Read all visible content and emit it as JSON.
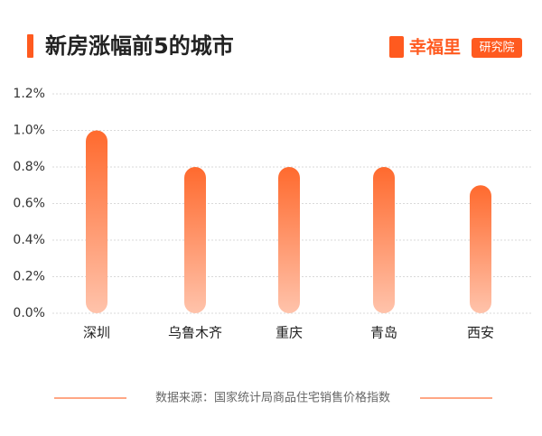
{
  "chart_data": {
    "type": "bar",
    "title": "新房涨幅前5的城市",
    "categories": [
      "深圳",
      "乌鲁木齐",
      "重庆",
      "青岛",
      "西安"
    ],
    "values": [
      1.0,
      0.8,
      0.8,
      0.8,
      0.7
    ],
    "color": "#ff6a2e",
    "ylim": [
      0,
      1.2
    ],
    "yticks": [
      {
        "value": 0,
        "label": "0.0%"
      },
      {
        "value": 0.2,
        "label": "0.2%"
      },
      {
        "value": 0.4,
        "label": "0.4%"
      },
      {
        "value": 0.6,
        "label": "0.6%"
      },
      {
        "value": 0.8,
        "label": "0.8%"
      },
      {
        "value": 1.0,
        "label": "1.0%"
      },
      {
        "value": 1.2,
        "label": "1.2%"
      }
    ],
    "grid": true,
    "source": "数据来源：国家统计局商品住宅销售价格指数"
  },
  "brand": {
    "name": "幸福里",
    "tag": "研究院"
  }
}
